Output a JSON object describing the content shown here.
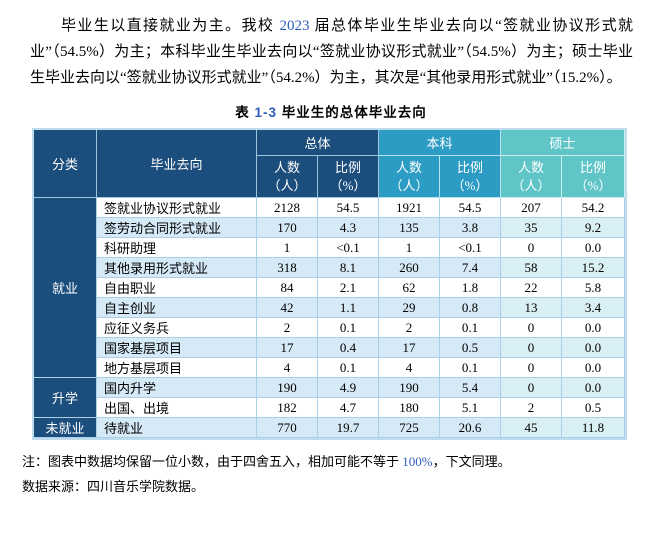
{
  "colors": {
    "navy": "#1C4E7D",
    "blue": "#2C9CC4",
    "teal": "#5FC5C7",
    "stripe": "#D5E9F7",
    "stripeMs": "#D8EFF3",
    "grid": "#ABCFE9",
    "outer": "#BFDCEF",
    "numblue": "#2F5DBD"
  },
  "intro": {
    "seg_a": "毕业生以直接就业为主。我校 ",
    "year": "2023",
    "seg_b": " 届总体毕业生毕业去向以“签就业协议形式就业”（54.5%）为主；本科毕业生毕业去向以“签就业协议形式就业”（54.5%）为主；硕士毕业生毕业去向以“签就业协议形式就业”（54.2%）为主，其次是“其他录用形式就业”（15.2%）。"
  },
  "table": {
    "caption": {
      "prefix": "表 ",
      "number": "1-3",
      "suffix": "  毕业生的总体毕业去向"
    },
    "header": {
      "category": "分类",
      "destination": "毕业去向",
      "groups": [
        {
          "label": "总体",
          "cols": [
            {
              "l1": "人数",
              "l2": "（人）"
            },
            {
              "l1": "比例",
              "l2": "（%）"
            }
          ]
        },
        {
          "label": "本科",
          "cols": [
            {
              "l1": "人数",
              "l2": "（人）"
            },
            {
              "l1": "比例",
              "l2": "（%）"
            }
          ]
        },
        {
          "label": "硕士",
          "cols": [
            {
              "l1": "人数",
              "l2": "（人）"
            },
            {
              "l1": "比例",
              "l2": "（%）"
            }
          ]
        }
      ]
    },
    "sections": [
      {
        "category": "就业",
        "rows": [
          {
            "dest": "签就业协议形式就业",
            "values": [
              "2128",
              "54.5",
              "1921",
              "54.5",
              "207",
              "54.2"
            ]
          },
          {
            "dest": "签劳动合同形式就业",
            "values": [
              "170",
              "4.3",
              "135",
              "3.8",
              "35",
              "9.2"
            ]
          },
          {
            "dest": "科研助理",
            "values": [
              "1",
              "<0.1",
              "1",
              "<0.1",
              "0",
              "0.0"
            ]
          },
          {
            "dest": "其他录用形式就业",
            "values": [
              "318",
              "8.1",
              "260",
              "7.4",
              "58",
              "15.2"
            ]
          },
          {
            "dest": "自由职业",
            "values": [
              "84",
              "2.1",
              "62",
              "1.8",
              "22",
              "5.8"
            ]
          },
          {
            "dest": "自主创业",
            "values": [
              "42",
              "1.1",
              "29",
              "0.8",
              "13",
              "3.4"
            ]
          },
          {
            "dest": "应征义务兵",
            "values": [
              "2",
              "0.1",
              "2",
              "0.1",
              "0",
              "0.0"
            ]
          },
          {
            "dest": "国家基层项目",
            "values": [
              "17",
              "0.4",
              "17",
              "0.5",
              "0",
              "0.0"
            ]
          },
          {
            "dest": "地方基层项目",
            "values": [
              "4",
              "0.1",
              "4",
              "0.1",
              "0",
              "0.0"
            ]
          }
        ]
      },
      {
        "category": "升学",
        "rows": [
          {
            "dest": "国内升学",
            "values": [
              "190",
              "4.9",
              "190",
              "5.4",
              "0",
              "0.0"
            ]
          },
          {
            "dest": "出国、出境",
            "values": [
              "182",
              "4.7",
              "180",
              "5.1",
              "2",
              "0.5"
            ]
          }
        ]
      },
      {
        "category": "未就业",
        "rows": [
          {
            "dest": "待就业",
            "values": [
              "770",
              "19.7",
              "725",
              "20.6",
              "45",
              "11.8"
            ]
          }
        ]
      }
    ]
  },
  "notes": {
    "note1": {
      "seg_a": "注：图表中数据均保留一位小数，由于四舍五入，相加可能不等于 ",
      "num": "100%",
      "seg_b": "，下文同理。"
    },
    "note2": "数据来源：四川音乐学院数据。"
  }
}
